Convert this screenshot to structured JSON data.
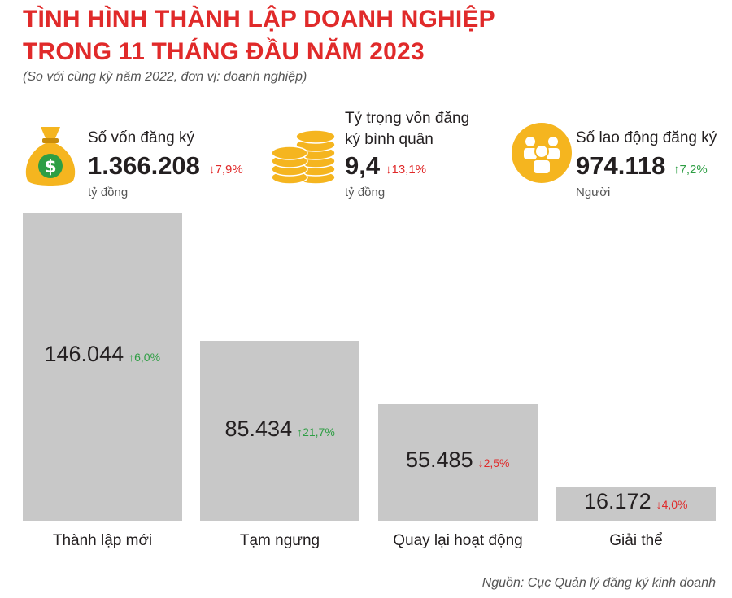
{
  "title_line1": "TÌNH HÌNH THÀNH LẬP DOANH NGHIỆP",
  "title_line2": "TRONG 11 THÁNG ĐẦU NĂM 2023",
  "subtitle": "(So với cùng kỳ năm 2022, đơn vị: doanh nghiệp)",
  "colors": {
    "title": "#e02a2a",
    "up": "#2e9e44",
    "down": "#e02a2a",
    "bar": "#c8c8c8",
    "icon": "#f5b51f"
  },
  "kpis": [
    {
      "icon": "money-bag-icon",
      "label": "Số vốn đăng ký",
      "value": "1.366.208",
      "change": "↓7,9%",
      "direction": "down",
      "unit": "tỷ đồng"
    },
    {
      "icon": "coins-stack-icon",
      "label_line1": "Tỷ trọng vốn đăng",
      "label_line2": "ký bình quân",
      "value": "9,4",
      "change": "↓13,1%",
      "direction": "down",
      "unit": "tỷ đồng"
    },
    {
      "icon": "people-icon",
      "label": "Số lao động đăng ký",
      "value": "974.118",
      "change": "↑7,2%",
      "direction": "up",
      "unit": "Người"
    }
  ],
  "chart_data": {
    "type": "bar",
    "title": "",
    "categories": [
      "Thành lập mới",
      "Tạm ngưng",
      "Quay lại hoạt động",
      "Giải thể"
    ],
    "values": [
      146044,
      85434,
      55485,
      16172
    ],
    "value_labels": [
      "146.044",
      "85.434",
      "55.485",
      "16.172"
    ],
    "changes": [
      "↑6,0%",
      "↑21,7%",
      "↓2,5%",
      "↓4,0%"
    ],
    "change_directions": [
      "up",
      "up",
      "down",
      "down"
    ],
    "xlabel": "",
    "ylabel": "",
    "ylim": [
      0,
      146044
    ],
    "grid": false,
    "legend": "none"
  },
  "source": "Nguồn: Cục Quản lý đăng ký kinh doanh"
}
